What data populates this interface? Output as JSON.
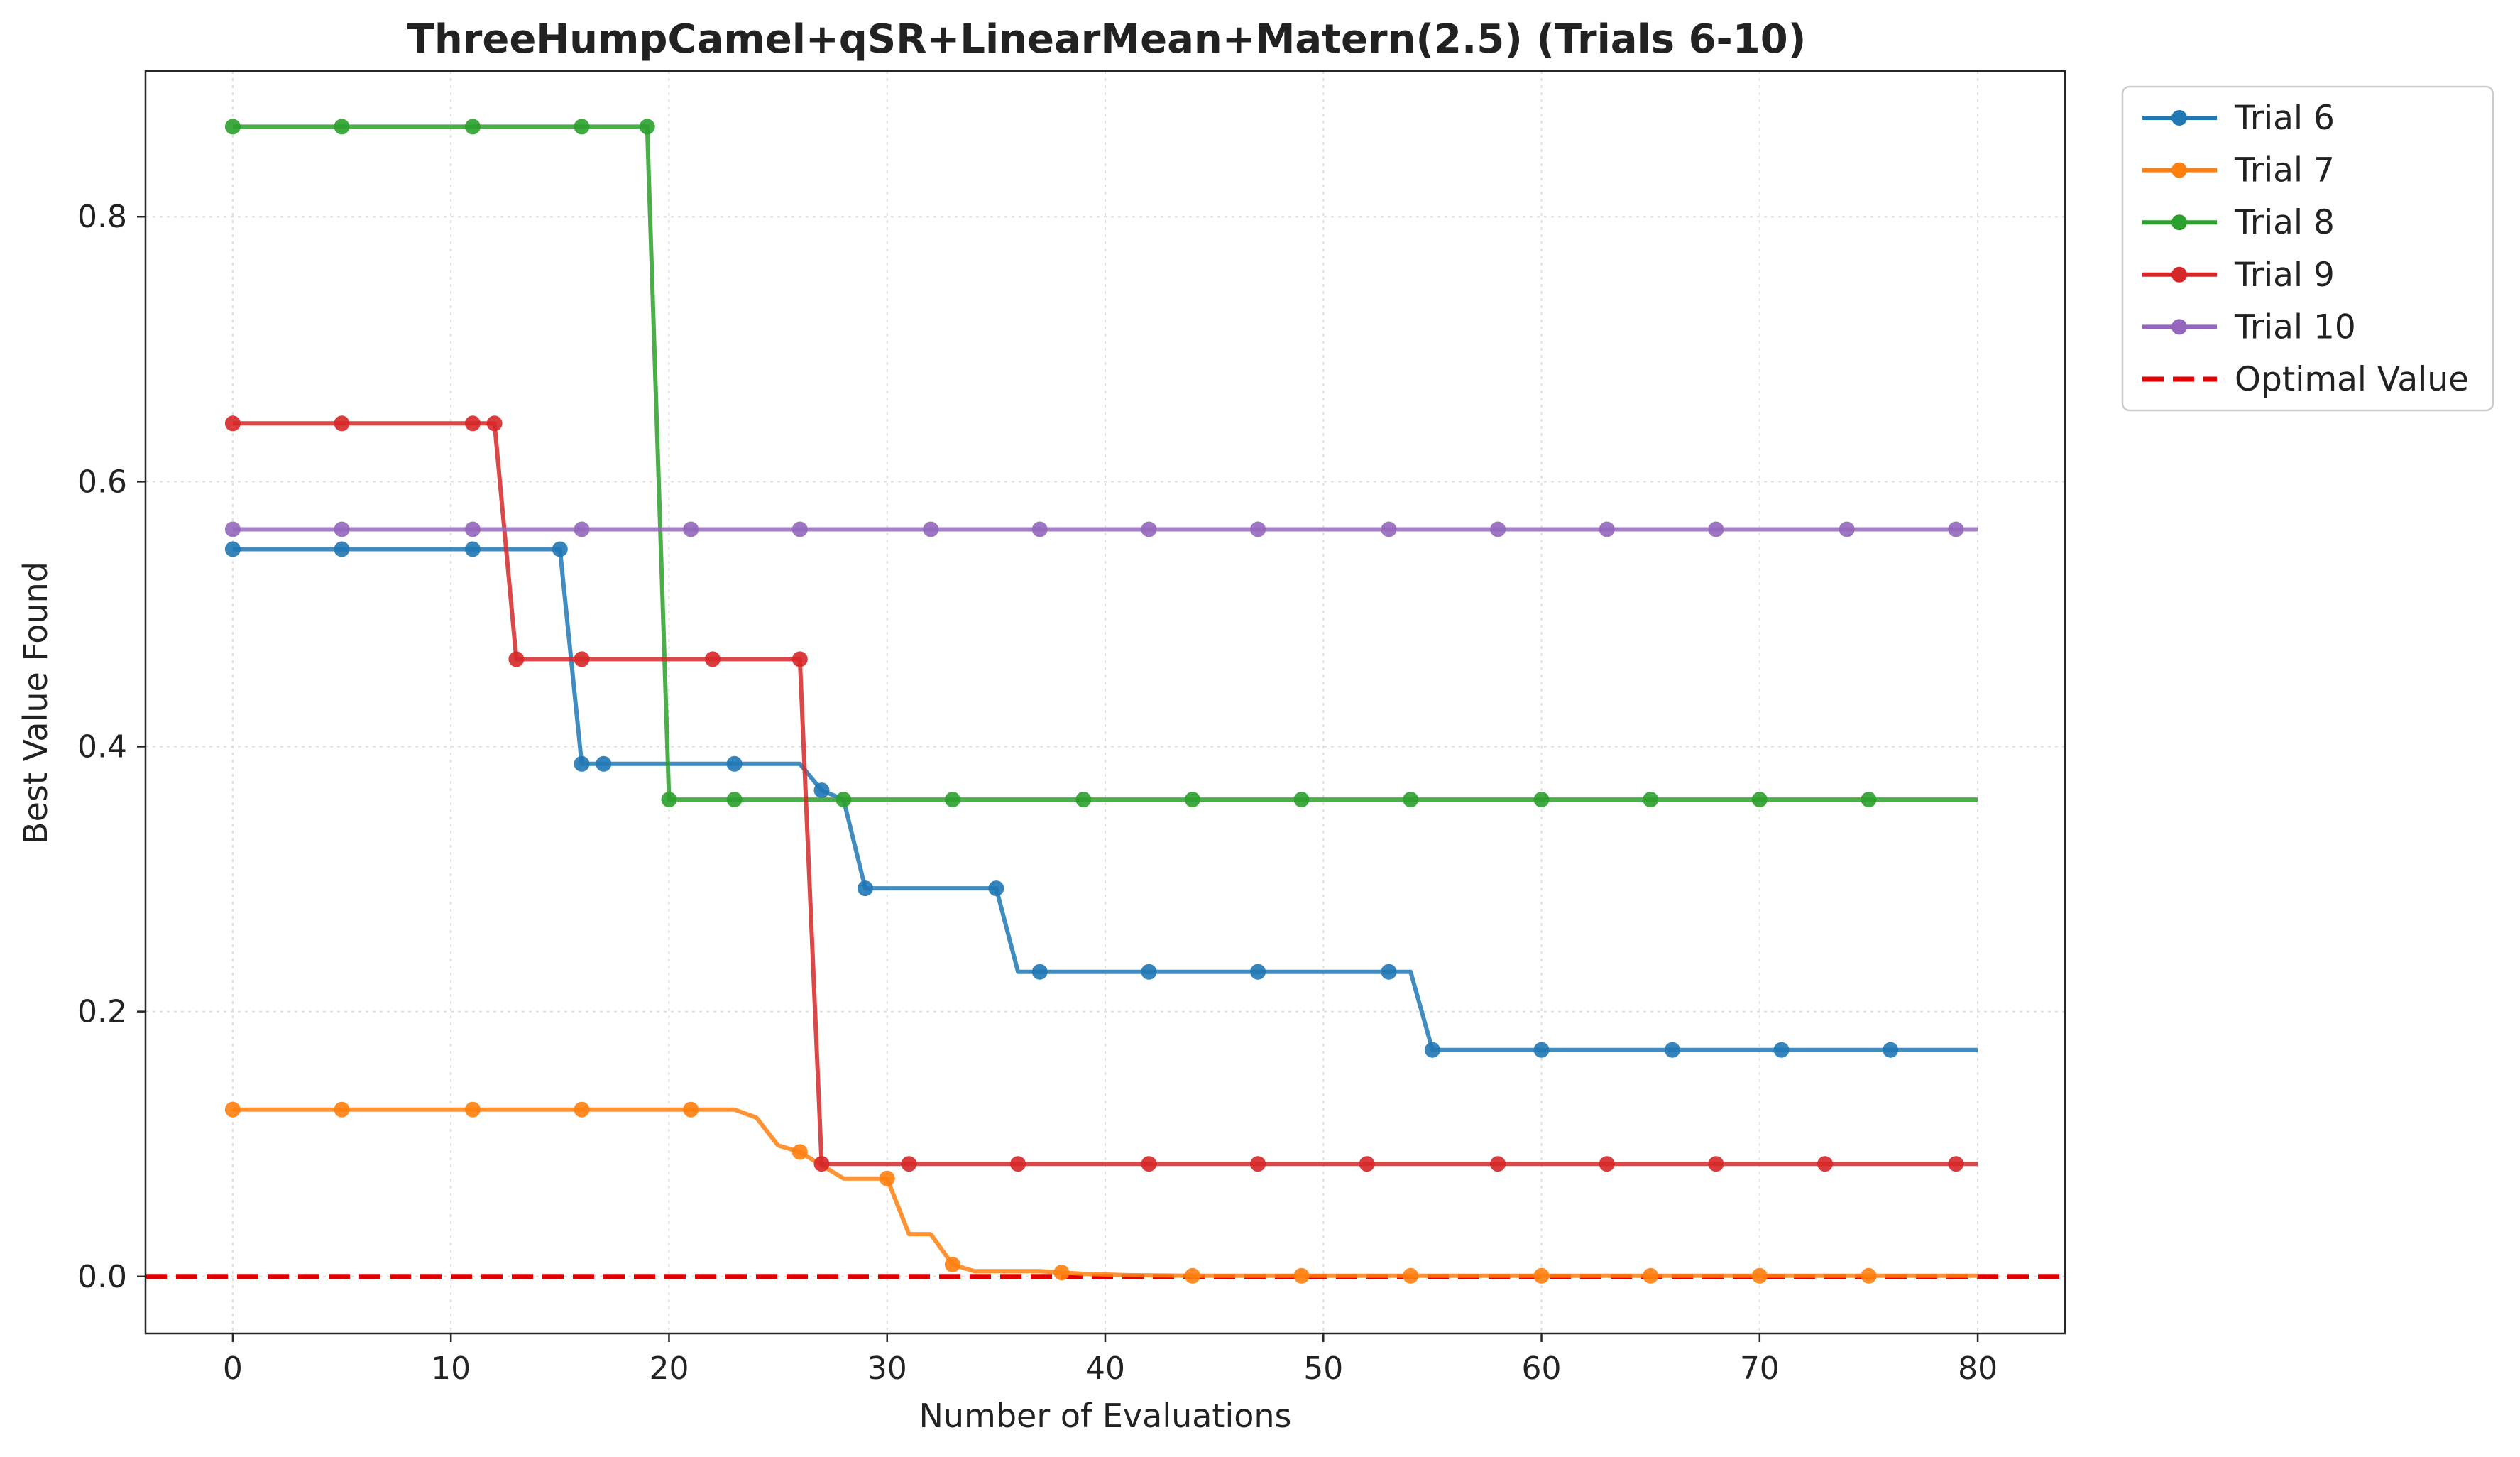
{
  "chart_data": {
    "type": "line",
    "title": "ThreeHumpCamel+qSR+LinearMean+Matern(2.5) (Trials 6-10)",
    "xlabel": "Number of Evaluations",
    "ylabel": "Best Value Found",
    "xlim": [
      -4,
      84
    ],
    "ylim": [
      -0.043,
      0.91
    ],
    "xticks": [
      0,
      10,
      20,
      30,
      40,
      50,
      60,
      70,
      80
    ],
    "yticks": [
      0.0,
      0.2,
      0.4,
      0.6,
      0.8
    ],
    "ytick_labels": [
      "0.0",
      "0.2",
      "0.4",
      "0.6",
      "0.8"
    ],
    "grid": true,
    "legend_position": "outside-top-right",
    "series": [
      {
        "name": "Trial 6",
        "color": "#1f77b4",
        "points": [
          [
            0,
            0.549
          ],
          [
            15,
            0.549
          ],
          [
            16,
            0.387
          ],
          [
            26,
            0.387
          ],
          [
            27,
            0.367
          ],
          [
            28,
            0.36
          ],
          [
            29,
            0.293
          ],
          [
            35,
            0.293
          ],
          [
            36,
            0.23
          ],
          [
            54,
            0.23
          ],
          [
            55,
            0.171
          ],
          [
            80,
            0.171
          ]
        ],
        "marker_x": [
          0,
          5,
          11,
          15,
          16,
          17,
          23,
          27,
          29,
          35,
          37,
          42,
          47,
          53,
          55,
          60,
          66,
          71,
          76
        ]
      },
      {
        "name": "Trial 7",
        "color": "#ff7f0e",
        "points": [
          [
            0,
            0.126
          ],
          [
            23,
            0.126
          ],
          [
            24,
            0.12
          ],
          [
            25,
            0.099
          ],
          [
            26,
            0.094
          ],
          [
            27,
            0.084
          ],
          [
            28,
            0.074
          ],
          [
            30,
            0.074
          ],
          [
            31,
            0.032
          ],
          [
            32,
            0.032
          ],
          [
            33,
            0.009
          ],
          [
            34,
            0.004
          ],
          [
            37,
            0.004
          ],
          [
            38,
            0.003
          ],
          [
            39,
            0.002
          ],
          [
            41,
            0.001
          ],
          [
            44,
            0.0005
          ],
          [
            80,
            0.0005
          ]
        ],
        "marker_x": [
          0,
          5,
          11,
          16,
          21,
          26,
          30,
          33,
          38,
          44,
          49,
          54,
          60,
          65,
          70,
          75
        ]
      },
      {
        "name": "Trial 8",
        "color": "#2ca02c",
        "points": [
          [
            0,
            0.868
          ],
          [
            19,
            0.868
          ],
          [
            20,
            0.36
          ],
          [
            80,
            0.36
          ]
        ],
        "marker_x": [
          0,
          5,
          11,
          16,
          19,
          20,
          23,
          28,
          33,
          39,
          44,
          49,
          54,
          60,
          65,
          70,
          75
        ]
      },
      {
        "name": "Trial 9",
        "color": "#d62728",
        "points": [
          [
            0,
            0.644
          ],
          [
            12,
            0.644
          ],
          [
            13,
            0.466
          ],
          [
            26,
            0.466
          ],
          [
            27,
            0.085
          ],
          [
            80,
            0.085
          ]
        ],
        "marker_x": [
          0,
          5,
          11,
          12,
          13,
          16,
          22,
          26,
          27,
          31,
          36,
          42,
          47,
          52,
          58,
          63,
          68,
          73,
          79
        ]
      },
      {
        "name": "Trial 10",
        "color": "#9467bd",
        "points": [
          [
            0,
            0.564
          ],
          [
            80,
            0.564
          ]
        ],
        "marker_x": [
          0,
          5,
          11,
          16,
          21,
          26,
          32,
          37,
          42,
          47,
          53,
          58,
          63,
          68,
          74,
          79
        ]
      }
    ],
    "reference_lines": [
      {
        "name": "Optimal Value",
        "y": 0.0,
        "color": "#e00000",
        "style": "dashed"
      }
    ]
  }
}
